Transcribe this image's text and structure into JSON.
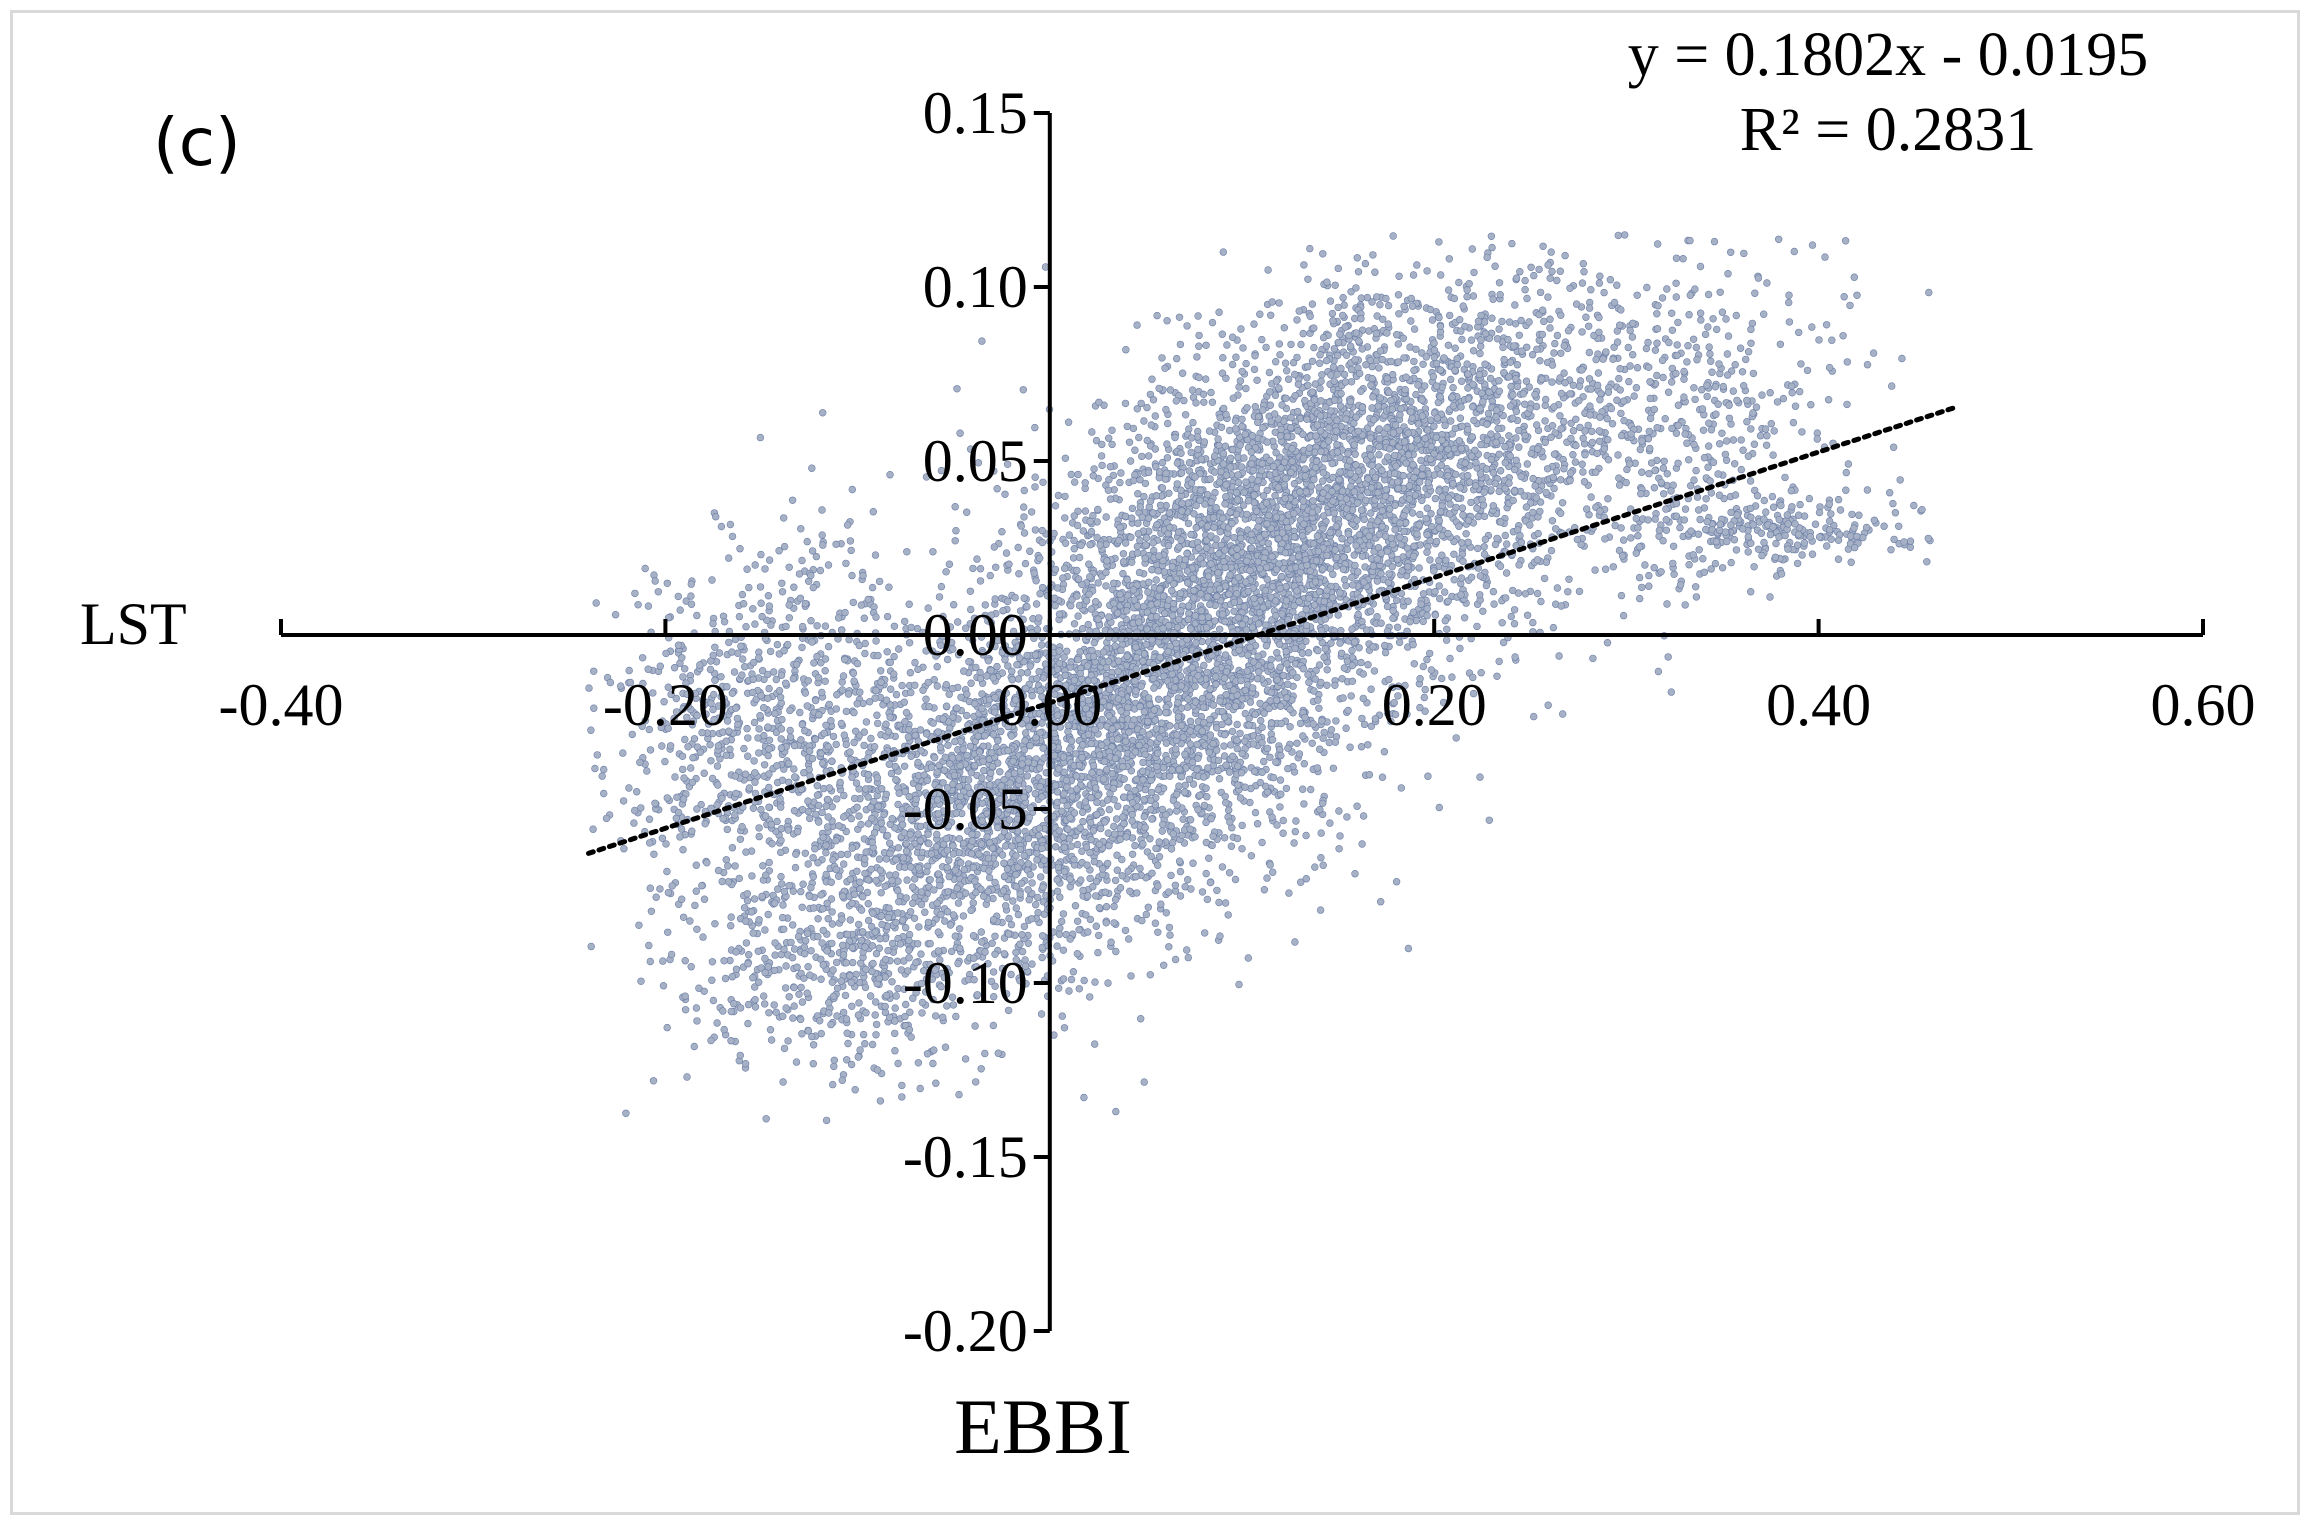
{
  "chart_data": {
    "type": "scatter",
    "panel_label": "(c)",
    "xlabel": "EBBI",
    "ylabel": "LST",
    "xlim": [
      -0.4,
      0.6
    ],
    "ylim": [
      -0.2,
      0.15
    ],
    "x_ticks": [
      -0.4,
      -0.2,
      0.0,
      0.2,
      0.4,
      0.6
    ],
    "x_tick_labels": [
      "-0.40",
      "-0.20",
      "0.00",
      "0.20",
      "0.40",
      "0.60"
    ],
    "y_ticks": [
      -0.2,
      -0.15,
      -0.1,
      -0.05,
      0.0,
      0.05,
      0.1,
      0.15
    ],
    "y_tick_labels": [
      "-0.20",
      "-0.15",
      "-0.10",
      "-0.05",
      "0.00",
      "0.05",
      "0.10",
      "0.15"
    ],
    "grid": false,
    "legend": "none",
    "trendline": {
      "slope": 0.1802,
      "intercept": -0.0195,
      "x_range": [
        -0.24,
        0.47
      ],
      "style": "dotted",
      "equation": "y = 0.1802x - 0.0195",
      "r_squared": "R² = 0.2831"
    },
    "point_cloud": {
      "description_points": "dense cloud of several thousand points",
      "center_x": 0.05,
      "center_y": -0.01,
      "x_range": [
        -0.24,
        0.46
      ],
      "y_range": [
        -0.14,
        0.115
      ],
      "marker_color": "#a7b1c6",
      "marker_edge_color": "#6b7ea6"
    },
    "point_clusters": [
      {
        "cx": 0.08,
        "cy": 0.0,
        "sx": 0.09,
        "sy": 0.045,
        "rho": 0.72,
        "n": 5200
      },
      {
        "cx": -0.03,
        "cy": -0.05,
        "sx": 0.08,
        "sy": 0.03,
        "rho": 0.45,
        "n": 1600
      },
      {
        "cx": 0.17,
        "cy": 0.05,
        "sx": 0.08,
        "sy": 0.025,
        "rho": 0.35,
        "n": 1800
      },
      {
        "cx": -0.15,
        "cy": -0.02,
        "sx": 0.04,
        "sy": 0.025,
        "rho": 0.2,
        "n": 700
      },
      {
        "cx": 0.34,
        "cy": 0.06,
        "sx": 0.04,
        "sy": 0.025,
        "rho": 0.3,
        "n": 350
      },
      {
        "cx": 0.38,
        "cy": 0.03,
        "sx": 0.04,
        "sy": 0.005,
        "rho": 0.1,
        "n": 250
      },
      {
        "cx": -0.1,
        "cy": -0.095,
        "sx": 0.03,
        "sy": 0.015,
        "rho": 0.3,
        "n": 250
      }
    ]
  }
}
